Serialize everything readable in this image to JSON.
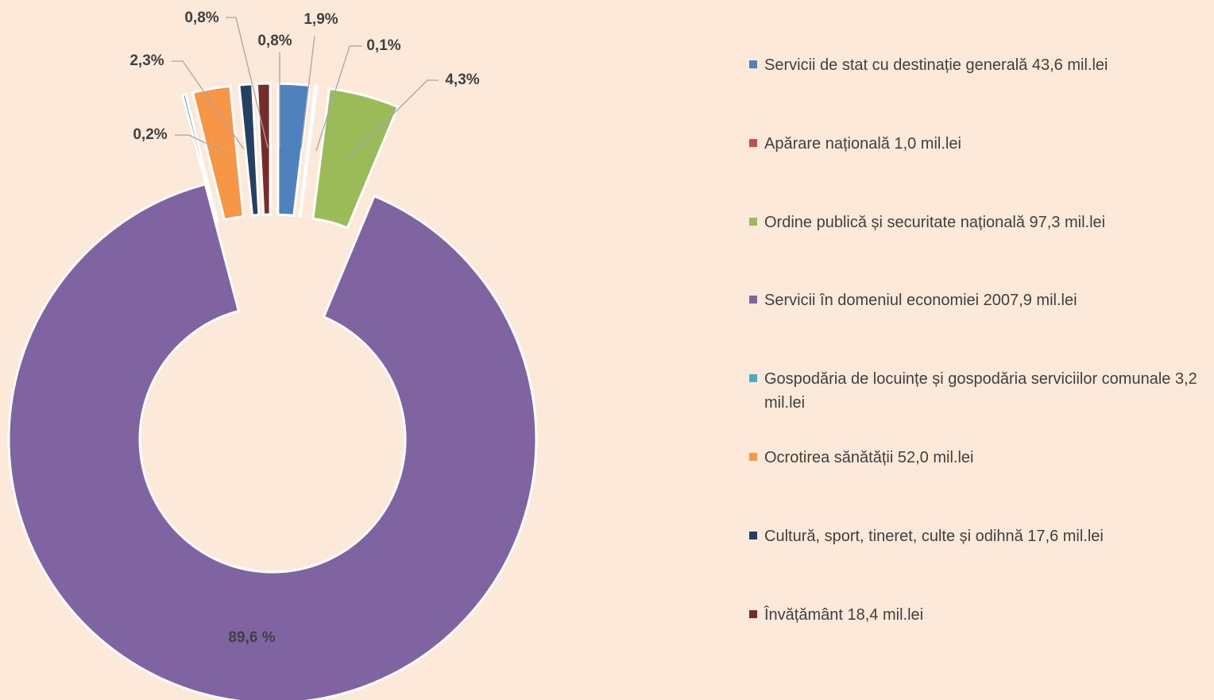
{
  "chart_data": {
    "type": "donut",
    "categories": [
      "Servicii de stat cu destinație generală 43,6 mil.lei",
      "Apărare națională 1,0 mil.lei",
      "Ordine publică și securitate națională 97,3 mil.lei",
      "Servicii în domeniul economiei 2007,9 mil.lei",
      "Gospodăria de locuințe și gospodăria serviciilor comunale 3,2 mil.lei",
      "Ocrotirea sănătății 52,0 mil.lei",
      "Cultură, sport, tineret, culte și odihnă 17,6 mil.lei",
      "Învățământ 18,4 mil.lei"
    ],
    "values": [
      1.9,
      0.1,
      4.3,
      89.6,
      0.2,
      2.3,
      0.8,
      0.8
    ],
    "value_labels": [
      "1,9%",
      "0,1%",
      "4,3%",
      "89,6 %",
      "0,2%",
      "2,3%",
      "0,8%",
      "0,8%"
    ],
    "colors": [
      "#4f81bd",
      "#c0504d",
      "#9bbb59",
      "#8064a2",
      "#4bacc6",
      "#f79646",
      "#254061",
      "#772c2a"
    ]
  }
}
